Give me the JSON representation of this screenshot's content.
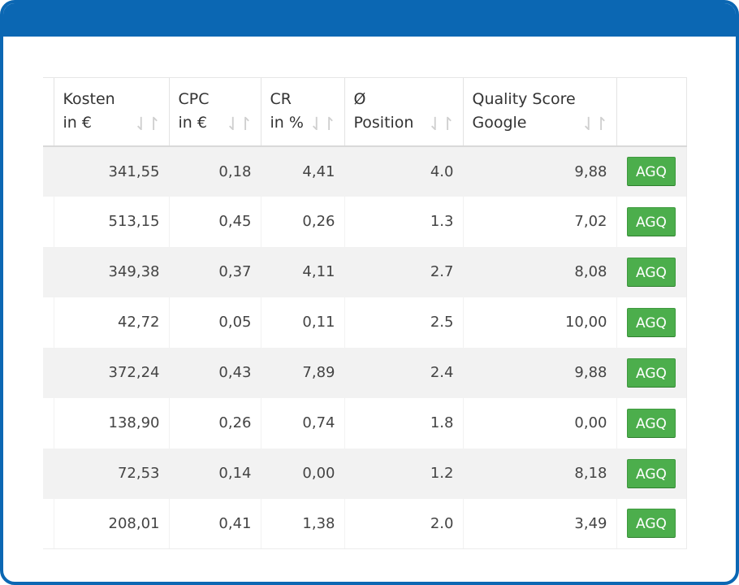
{
  "table": {
    "headers": [
      {
        "label": "Kosten\nin €",
        "sort_icon": "⇃↾"
      },
      {
        "label": "CPC\nin €",
        "sort_icon": "⇃↾"
      },
      {
        "label": "CR\nin %",
        "sort_icon": "⇃↾"
      },
      {
        "label": "Ø\nPosition",
        "sort_icon": "⇃↾"
      },
      {
        "label": "Quality Score\nGoogle",
        "sort_icon": "⇃↾"
      }
    ],
    "rows": [
      {
        "kosten": "341,55",
        "cpc": "0,18",
        "cr": "4,41",
        "position": "4.0",
        "quality": "9,88",
        "action": "AGQ"
      },
      {
        "kosten": "513,15",
        "cpc": "0,45",
        "cr": "0,26",
        "position": "1.3",
        "quality": "7,02",
        "action": "AGQ"
      },
      {
        "kosten": "349,38",
        "cpc": "0,37",
        "cr": "4,11",
        "position": "2.7",
        "quality": "8,08",
        "action": "AGQ"
      },
      {
        "kosten": "42,72",
        "cpc": "0,05",
        "cr": "0,11",
        "position": "2.5",
        "quality": "10,00",
        "action": "AGQ"
      },
      {
        "kosten": "372,24",
        "cpc": "0,43",
        "cr": "7,89",
        "position": "2.4",
        "quality": "9,88",
        "action": "AGQ"
      },
      {
        "kosten": "138,90",
        "cpc": "0,26",
        "cr": "0,74",
        "position": "1.8",
        "quality": "0,00",
        "action": "AGQ"
      },
      {
        "kosten": "72,53",
        "cpc": "0,14",
        "cr": "0,00",
        "position": "1.2",
        "quality": "8,18",
        "action": "AGQ"
      },
      {
        "kosten": "208,01",
        "cpc": "0,41",
        "cr": "1,38",
        "position": "2.0",
        "quality": "3,49",
        "action": "AGQ"
      }
    ]
  },
  "colors": {
    "frame": "#0b67b3",
    "button": "#4cae4c",
    "stripe": "#f2f2f2"
  }
}
